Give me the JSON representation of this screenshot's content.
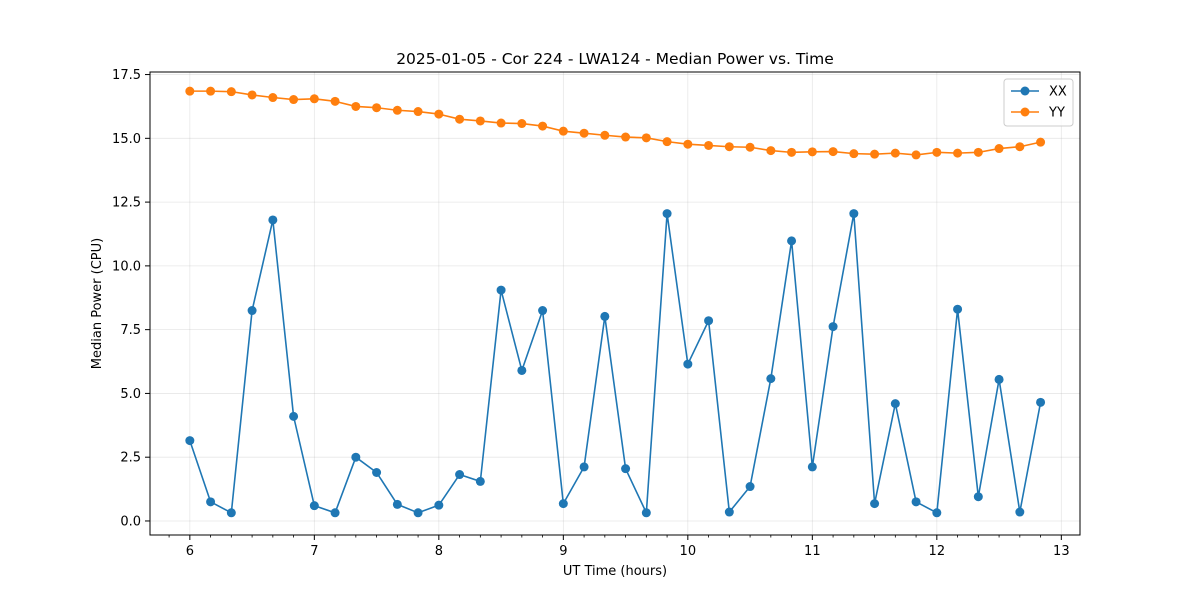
{
  "chart_data": {
    "type": "line",
    "title": "2025-01-05 - Cor 224 - LWA124 - Median Power vs. Time",
    "xlabel": "UT Time (hours)",
    "ylabel": "Median Power (CPU)",
    "xlim": [
      5.68,
      13.15
    ],
    "ylim": [
      -0.55,
      17.6
    ],
    "xticks": [
      6,
      7,
      8,
      9,
      10,
      11,
      12,
      13
    ],
    "xtick_labels": [
      "6",
      "7",
      "8",
      "9",
      "10",
      "11",
      "12",
      "13"
    ],
    "yticks": [
      0.0,
      2.5,
      5.0,
      7.5,
      10.0,
      12.5,
      15.0,
      17.5
    ],
    "ytick_labels": [
      "0.0",
      "2.5",
      "5.0",
      "7.5",
      "10.0",
      "12.5",
      "15.0",
      "17.5"
    ],
    "grid": true,
    "legend_position": "top-right",
    "x": [
      6.0,
      6.1667,
      6.3333,
      6.5,
      6.6667,
      6.8333,
      7.0,
      7.1667,
      7.3333,
      7.5,
      7.6667,
      7.8333,
      8.0,
      8.1667,
      8.3333,
      8.5,
      8.6667,
      8.8333,
      9.0,
      9.1667,
      9.3333,
      9.5,
      9.6667,
      9.8333,
      10.0,
      10.1667,
      10.3333,
      10.5,
      10.6667,
      10.8333,
      11.0,
      11.1667,
      11.3333,
      11.5,
      11.6667,
      11.8333,
      12.0,
      12.1667,
      12.3333,
      12.5,
      12.6667,
      12.8333
    ],
    "series": [
      {
        "name": "XX",
        "color": "#1f77b4",
        "values": [
          3.15,
          0.75,
          0.32,
          8.25,
          11.8,
          4.1,
          0.6,
          0.32,
          2.5,
          1.9,
          0.65,
          0.32,
          0.62,
          1.82,
          1.55,
          9.05,
          5.9,
          8.25,
          0.68,
          2.12,
          8.02,
          2.05,
          0.32,
          12.05,
          6.15,
          7.85,
          0.35,
          1.35,
          5.58,
          10.98,
          2.12,
          7.62,
          12.05,
          0.68,
          4.6,
          0.75,
          0.32,
          8.3,
          0.95,
          5.55,
          0.35,
          4.65
        ]
      },
      {
        "name": "YY",
        "color": "#ff7f0e",
        "values": [
          16.85,
          16.85,
          16.83,
          16.7,
          16.6,
          16.52,
          16.55,
          16.45,
          16.25,
          16.2,
          16.1,
          16.05,
          15.95,
          15.75,
          15.68,
          15.6,
          15.58,
          15.48,
          15.28,
          15.2,
          15.12,
          15.05,
          15.02,
          14.87,
          14.77,
          14.72,
          14.67,
          14.65,
          14.52,
          14.45,
          14.47,
          14.48,
          14.4,
          14.38,
          14.42,
          14.35,
          14.45,
          14.42,
          14.45,
          14.6,
          14.67,
          14.85
        ]
      }
    ]
  }
}
